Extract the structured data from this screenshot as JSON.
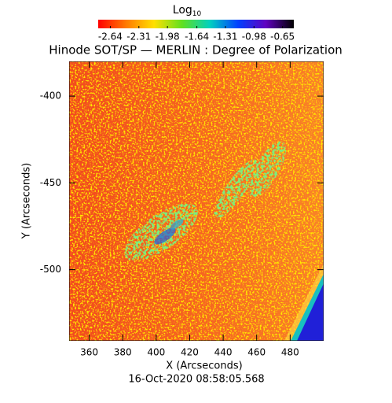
{
  "chart_data": {
    "type": "image",
    "title": "Hinode SOT/SP — MERLIN : Degree of Polarization",
    "colorbar_label": "Log",
    "colorbar_label_sub": "10",
    "colorbar_lim": [
      -2.78,
      -0.52
    ],
    "colorbar_ticks": [
      -2.64,
      -2.31,
      -1.98,
      -1.64,
      -1.31,
      -0.98,
      -0.65
    ],
    "colormap": [
      "#ff0000",
      "#ff7a00",
      "#ffe000",
      "#60e020",
      "#00d0c0",
      "#0040ff",
      "#6000c0",
      "#000000"
    ],
    "x_label": "X (Arcseconds)",
    "y_label": "Y (Arcseconds)",
    "xlim": [
      348,
      500
    ],
    "ylim": [
      -541,
      -380
    ],
    "xticks": [
      360,
      380,
      400,
      420,
      440,
      460,
      480
    ],
    "yticks": [
      -400,
      -450,
      -500
    ],
    "footer": "16-Oct-2020 08:58:05.568"
  }
}
